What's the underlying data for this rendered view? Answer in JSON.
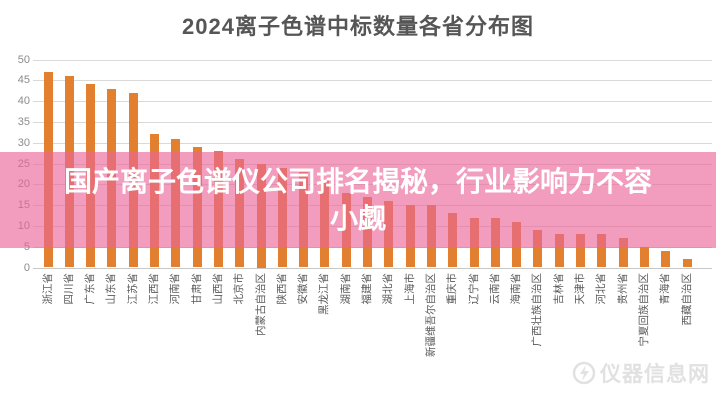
{
  "title": "2024离子色谱中标数量各省分布图",
  "overlay": {
    "line1": "国产离子色谱仪公司排名揭秘，行业影响力不容",
    "line2": "小觑"
  },
  "watermark": {
    "text": "仪器信息网"
  },
  "colors": {
    "bar": "#e2802f",
    "overlay_background": "rgba(234,100,152,0.63)",
    "overlay_text": "#ffffff",
    "grid": "#d9d9d9",
    "axis_text": "#8c8c8c",
    "category_text": "#595959",
    "title_text": "#565656",
    "watermark_text": "#dcdcdc"
  },
  "chart_data": {
    "type": "bar",
    "title": "2024离子色谱中标数量各省分布图",
    "xlabel": "",
    "ylabel": "",
    "ylim": [
      0,
      50
    ],
    "yticks": [
      0,
      5,
      10,
      15,
      20,
      25,
      30,
      35,
      40,
      45,
      50
    ],
    "grid": true,
    "legend": false,
    "categories": [
      "浙江省",
      "四川省",
      "广东省",
      "山东省",
      "江苏省",
      "江西省",
      "河南省",
      "甘肃省",
      "山西省",
      "北京市",
      "内蒙古自治区",
      "陕西省",
      "安徽省",
      "黑龙江省",
      "湖南省",
      "福建省",
      "湖北省",
      "上海市",
      "新疆维吾尔自治区",
      "重庆市",
      "辽宁省",
      "云南省",
      "海南省",
      "广西壮族自治区",
      "吉林省",
      "天津市",
      "河北省",
      "贵州省",
      "宁夏回族自治区",
      "青海省",
      "西藏自治区"
    ],
    "values": [
      47,
      46,
      44,
      43,
      42,
      32,
      31,
      29,
      28,
      26,
      25,
      24,
      23,
      21,
      18,
      17,
      16,
      15,
      15,
      13,
      12,
      12,
      11,
      9,
      8,
      8,
      8,
      7,
      5,
      4,
      2
    ]
  }
}
